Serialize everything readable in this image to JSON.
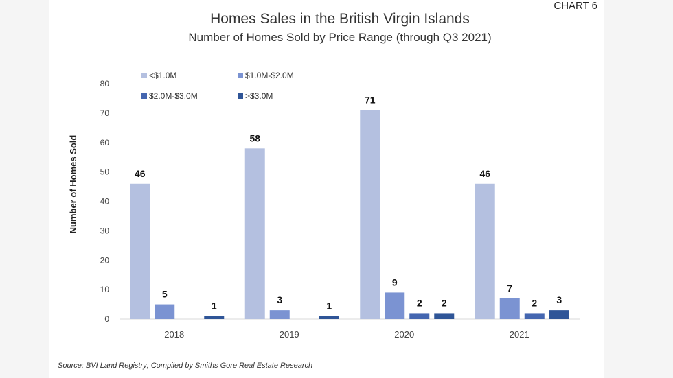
{
  "header": {
    "chart_label": "CHART 6"
  },
  "source": "Source: BVI Land Registry; Compiled by Smiths Gore Real Estate Research",
  "chart_data": {
    "type": "bar",
    "title": "Homes Sales in the British Virgin Islands",
    "subtitle": "Number of Homes Sold by Price Range (through Q3 2021)",
    "xlabel": "",
    "ylabel": "Number of Homes Sold",
    "ylim": [
      0,
      80
    ],
    "yticks": [
      0,
      10,
      20,
      30,
      40,
      50,
      60,
      70,
      80
    ],
    "grid": false,
    "legend_position": "top-left",
    "categories": [
      "2018",
      "2019",
      "2020",
      "2021"
    ],
    "series": [
      {
        "name": "<$1.0M",
        "color": "#b4c0e0",
        "values": [
          46,
          58,
          71,
          46
        ],
        "labels": [
          "46",
          "58",
          "71",
          "46"
        ]
      },
      {
        "name": "$1.0M-$2.0M",
        "color": "#7b93d2",
        "values": [
          5,
          3,
          9,
          7
        ],
        "labels": [
          "5",
          "3",
          "9",
          "7"
        ]
      },
      {
        "name": "$2.0M-$3.0M",
        "color": "#4466b0",
        "values": [
          0,
          0,
          2,
          2
        ],
        "labels": [
          "",
          "",
          "2",
          "2"
        ]
      },
      {
        "name": ">$3.0M",
        "color": "#2f5597",
        "values": [
          1,
          1,
          2,
          3
        ],
        "labels": [
          "1",
          "1",
          "2",
          "3"
        ]
      }
    ]
  }
}
